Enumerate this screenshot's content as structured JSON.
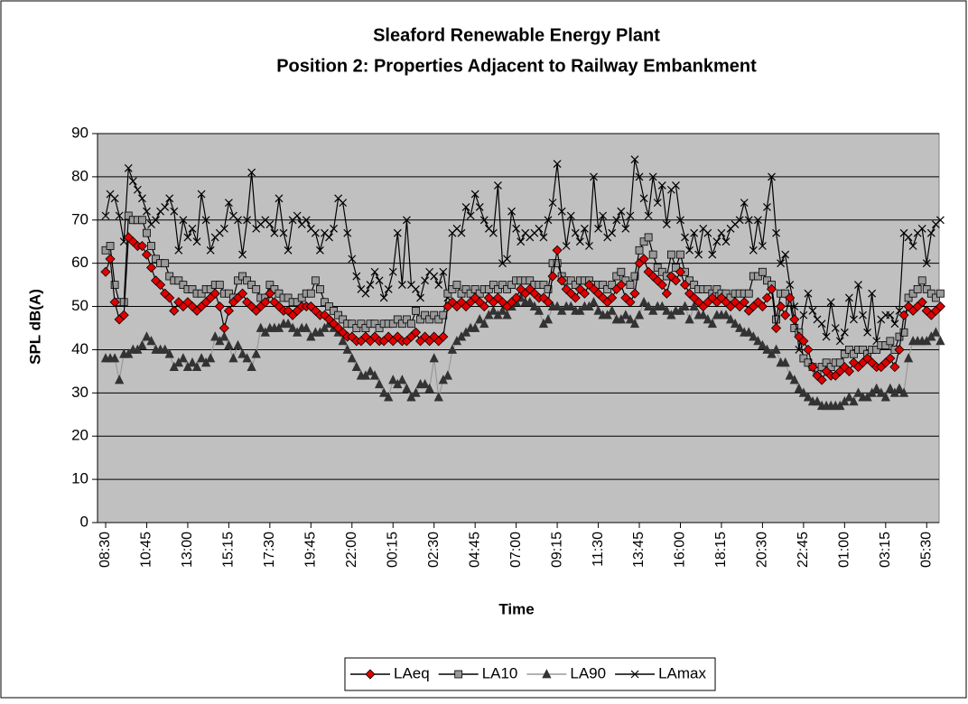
{
  "chart_data": {
    "type": "line",
    "title": "Sleaford Renewable Energy Plant",
    "subtitle": "Position 2: Properties Adjacent to Railway Embankment",
    "x_label": "Time",
    "y_label": "SPL dB(A)",
    "ylim": [
      0,
      90
    ],
    "yticks": [
      0,
      10,
      20,
      30,
      40,
      50,
      60,
      70,
      80,
      90
    ],
    "grid": true,
    "legend": "bottom",
    "plot_background": "#c0c0c0",
    "categories": [
      "08:30",
      null,
      null,
      null,
      null,
      null,
      null,
      null,
      null,
      "10:45",
      null,
      null,
      null,
      null,
      null,
      null,
      null,
      null,
      "13:00",
      null,
      null,
      null,
      null,
      null,
      null,
      null,
      null,
      "15:15",
      null,
      null,
      null,
      null,
      null,
      null,
      null,
      null,
      "17:30",
      null,
      null,
      null,
      null,
      null,
      null,
      null,
      null,
      "19:45",
      null,
      null,
      null,
      null,
      null,
      null,
      null,
      null,
      "22:00",
      null,
      null,
      null,
      null,
      null,
      null,
      null,
      null,
      "00:15",
      null,
      null,
      null,
      null,
      null,
      null,
      null,
      null,
      "02:30",
      null,
      null,
      null,
      null,
      null,
      null,
      null,
      null,
      "04:45",
      null,
      null,
      null,
      null,
      null,
      null,
      null,
      null,
      "07:00",
      null,
      null,
      null,
      null,
      null,
      null,
      null,
      null,
      "09:15",
      null,
      null,
      null,
      null,
      null,
      null,
      null,
      null,
      "11:30",
      null,
      null,
      null,
      null,
      null,
      null,
      null,
      null,
      "13:45",
      null,
      null,
      null,
      null,
      null,
      null,
      null,
      null,
      "16:00",
      null,
      null,
      null,
      null,
      null,
      null,
      null,
      null,
      "18:15",
      null,
      null,
      null,
      null,
      null,
      null,
      null,
      null,
      "20:30",
      null,
      null,
      null,
      null,
      null,
      null,
      null,
      null,
      "22:45",
      null,
      null,
      null,
      null,
      null,
      null,
      null,
      null,
      "01:00",
      null,
      null,
      null,
      null,
      null,
      null,
      null,
      null,
      "03:15",
      null,
      null,
      null,
      null,
      null,
      null,
      null,
      null,
      "05:30",
      null,
      null,
      null
    ],
    "series": [
      {
        "name": "LAeq",
        "color": "#e00000",
        "line_color": "#000000",
        "marker": "diamond",
        "values": [
          58,
          61,
          51,
          47,
          48,
          66,
          65,
          64,
          64,
          62,
          59,
          56,
          55,
          53,
          52,
          49,
          51,
          50,
          51,
          50,
          49,
          50,
          51,
          52,
          53,
          50,
          45,
          49,
          51,
          52,
          53,
          51,
          50,
          49,
          50,
          51,
          53,
          51,
          50,
          49,
          49,
          48,
          49,
          50,
          50,
          50,
          49,
          48,
          48,
          47,
          46,
          45,
          44,
          43,
          43,
          42,
          42,
          43,
          42,
          43,
          42,
          42,
          43,
          42,
          43,
          42,
          42,
          43,
          44,
          42,
          43,
          42,
          43,
          42,
          43,
          50,
          51,
          50,
          51,
          50,
          51,
          52,
          51,
          50,
          52,
          51,
          52,
          51,
          50,
          51,
          52,
          54,
          53,
          54,
          53,
          52,
          52,
          51,
          57,
          63,
          56,
          54,
          53,
          52,
          54,
          53,
          55,
          54,
          53,
          52,
          51,
          52,
          54,
          55,
          52,
          51,
          53,
          60,
          61,
          58,
          57,
          56,
          55,
          53,
          57,
          56,
          58,
          55,
          53,
          52,
          51,
          50,
          51,
          52,
          51,
          52,
          51,
          50,
          51,
          50,
          51,
          49,
          50,
          51,
          50,
          52,
          54,
          45,
          50,
          48,
          52,
          47,
          43,
          42,
          40,
          36,
          34,
          33,
          35,
          34,
          34,
          35,
          36,
          35,
          37,
          36,
          37,
          38,
          37,
          36,
          36,
          37,
          38,
          36,
          40,
          48,
          50,
          49,
          50,
          51,
          49,
          48,
          49,
          50
        ]
      },
      {
        "name": "LA10",
        "color": "#999999",
        "line_color": "#000000",
        "marker": "square",
        "values": [
          63,
          64,
          55,
          51,
          51,
          71,
          70,
          70,
          70,
          67,
          64,
          61,
          60,
          60,
          57,
          56,
          56,
          55,
          54,
          54,
          53,
          53,
          54,
          54,
          55,
          55,
          53,
          53,
          52,
          56,
          57,
          56,
          55,
          54,
          52,
          52,
          55,
          54,
          53,
          52,
          52,
          51,
          51,
          52,
          53,
          53,
          56,
          54,
          51,
          50,
          49,
          48,
          47,
          46,
          46,
          45,
          46,
          45,
          46,
          46,
          45,
          46,
          46,
          46,
          47,
          46,
          47,
          46,
          49,
          47,
          48,
          47,
          48,
          47,
          48,
          53,
          54,
          55,
          53,
          54,
          53,
          54,
          53,
          54,
          54,
          55,
          54,
          55,
          54,
          55,
          56,
          56,
          56,
          56,
          55,
          55,
          55,
          54,
          60,
          60,
          57,
          56,
          56,
          55,
          56,
          56,
          56,
          55,
          55,
          55,
          54,
          55,
          57,
          58,
          56,
          55,
          57,
          63,
          65,
          66,
          62,
          59,
          58,
          57,
          62,
          59,
          62,
          58,
          56,
          55,
          54,
          54,
          54,
          53,
          54,
          53,
          53,
          52,
          53,
          53,
          53,
          53,
          57,
          57,
          58,
          56,
          55,
          47,
          53,
          53,
          51,
          45,
          44,
          38,
          37,
          36,
          35,
          36,
          37,
          36,
          37,
          37,
          39,
          40,
          39,
          40,
          40,
          39,
          40,
          40,
          41,
          41,
          42,
          40,
          43,
          44,
          52,
          53,
          54,
          56,
          54,
          53,
          52,
          53
        ]
      },
      {
        "name": "LA90",
        "color": "#333333",
        "line_color": "#999999",
        "marker": "triangle",
        "values": [
          38,
          38,
          38,
          33,
          39,
          39,
          40,
          40,
          41,
          43,
          42,
          40,
          40,
          40,
          39,
          36,
          37,
          38,
          36,
          37,
          36,
          38,
          37,
          38,
          43,
          42,
          43,
          41,
          38,
          41,
          39,
          38,
          36,
          39,
          45,
          44,
          45,
          45,
          45,
          46,
          46,
          45,
          44,
          45,
          45,
          43,
          44,
          44,
          45,
          46,
          45,
          44,
          42,
          40,
          38,
          36,
          34,
          34,
          35,
          34,
          32,
          30,
          29,
          33,
          32,
          33,
          31,
          29,
          30,
          32,
          32,
          31,
          38,
          29,
          33,
          34,
          40,
          42,
          43,
          44,
          45,
          45,
          47,
          46,
          48,
          49,
          48,
          49,
          48,
          50,
          51,
          52,
          51,
          51,
          50,
          49,
          46,
          47,
          50,
          50,
          49,
          50,
          50,
          49,
          49,
          50,
          50,
          51,
          49,
          48,
          48,
          49,
          47,
          47,
          48,
          47,
          46,
          48,
          51,
          50,
          49,
          50,
          50,
          49,
          48,
          49,
          49,
          50,
          47,
          50,
          48,
          48,
          47,
          46,
          48,
          48,
          48,
          47,
          46,
          45,
          44,
          44,
          43,
          42,
          41,
          40,
          39,
          40,
          37,
          37,
          34,
          33,
          31,
          30,
          29,
          28,
          28,
          27,
          27,
          27,
          27,
          27,
          28,
          29,
          28,
          30,
          29,
          29,
          30,
          31,
          30,
          29,
          31,
          30,
          31,
          30,
          38,
          42,
          42,
          42,
          42,
          43,
          44,
          42
        ]
      },
      {
        "name": "LAmax",
        "color": "#000000",
        "line_color": "#000000",
        "marker": "cross",
        "values": [
          71,
          76,
          75,
          71,
          65,
          82,
          79,
          77,
          75,
          72,
          69,
          70,
          72,
          73,
          75,
          72,
          63,
          70,
          66,
          68,
          65,
          76,
          70,
          63,
          66,
          67,
          68,
          74,
          71,
          70,
          62,
          70,
          81,
          68,
          69,
          70,
          69,
          67,
          75,
          67,
          63,
          70,
          71,
          69,
          70,
          68,
          67,
          63,
          67,
          66,
          68,
          75,
          74,
          67,
          61,
          57,
          54,
          53,
          55,
          58,
          56,
          52,
          54,
          58,
          67,
          55,
          70,
          55,
          54,
          52,
          56,
          58,
          57,
          55,
          58,
          52,
          67,
          68,
          67,
          73,
          71,
          76,
          73,
          70,
          68,
          67,
          78,
          60,
          61,
          72,
          68,
          65,
          67,
          66,
          67,
          68,
          66,
          70,
          74,
          83,
          72,
          64,
          71,
          67,
          65,
          68,
          64,
          80,
          68,
          71,
          66,
          67,
          70,
          72,
          68,
          71,
          84,
          80,
          75,
          71,
          80,
          74,
          78,
          69,
          77,
          78,
          70,
          66,
          63,
          67,
          62,
          68,
          67,
          62,
          65,
          67,
          65,
          68,
          69,
          70,
          74,
          70,
          63,
          70,
          64,
          73,
          80,
          67,
          60,
          62,
          55,
          50,
          40,
          48,
          53,
          49,
          47,
          46,
          43,
          51,
          45,
          42,
          44,
          52,
          47,
          55,
          48,
          44,
          53,
          42,
          47,
          48,
          48,
          46,
          49,
          67,
          66,
          64,
          67,
          68,
          60,
          67,
          69,
          70
        ]
      }
    ]
  }
}
